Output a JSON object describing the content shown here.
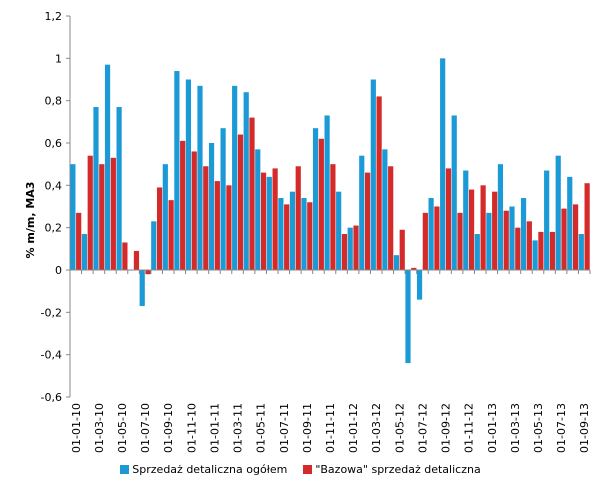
{
  "chart_data": {
    "type": "bar",
    "title": "",
    "xlabel": "",
    "ylabel": "% m/m, MA3",
    "ylim": [
      -0.6,
      1.2
    ],
    "ytick_step": 0.2,
    "ytick_labels": [
      "-0,6",
      "-0,4",
      "-0,2",
      "0",
      "0,2",
      "0,4",
      "0,6",
      "0,8",
      "1",
      "1,2"
    ],
    "grid": false,
    "legend_position": "bottom",
    "categories": [
      "01-01-10",
      "01-02-10",
      "01-03-10",
      "01-04-10",
      "01-05-10",
      "01-06-10",
      "01-07-10",
      "01-08-10",
      "01-09-10",
      "01-10-10",
      "01-11-10",
      "01-12-10",
      "01-01-11",
      "01-02-11",
      "01-03-11",
      "01-04-11",
      "01-05-11",
      "01-06-11",
      "01-07-11",
      "01-08-11",
      "01-09-11",
      "01-10-11",
      "01-11-11",
      "01-12-11",
      "01-01-12",
      "01-02-12",
      "01-03-12",
      "01-04-12",
      "01-05-12",
      "01-06-12",
      "01-07-12",
      "01-08-12",
      "01-09-12",
      "01-10-12",
      "01-11-12",
      "01-12-12",
      "01-01-13",
      "01-02-13",
      "01-03-13",
      "01-04-13",
      "01-05-13",
      "01-06-13",
      "01-07-13",
      "01-08-13",
      "01-09-13"
    ],
    "tick_labels": [
      "01-01-10",
      "01-03-10",
      "01-05-10",
      "01-07-10",
      "01-09-10",
      "01-11-10",
      "01-01-11",
      "01-03-11",
      "01-05-11",
      "01-07-11",
      "01-09-11",
      "01-11-11",
      "01-01-12",
      "01-03-12",
      "01-05-12",
      "01-07-12",
      "01-09-12",
      "01-11-12",
      "01-01-13",
      "01-03-13",
      "01-05-13",
      "01-07-13",
      "01-09-13"
    ],
    "series": [
      {
        "name": "Sprzedaż detaliczna  ogółem",
        "color": "#1c9ad6",
        "values": [
          0.5,
          0.17,
          0.77,
          0.97,
          0.77,
          0.0,
          -0.17,
          0.23,
          0.5,
          0.94,
          0.9,
          0.87,
          0.6,
          0.67,
          0.87,
          0.84,
          0.57,
          0.44,
          0.34,
          0.37,
          0.34,
          0.67,
          0.73,
          0.37,
          0.2,
          0.54,
          0.9,
          0.57,
          0.07,
          -0.44,
          -0.14,
          0.34,
          1.0,
          0.73,
          0.47,
          0.17,
          0.27,
          0.5,
          0.3,
          0.34,
          0.14,
          0.47,
          0.54,
          0.44,
          0.17
        ]
      },
      {
        "name": "\"Bazowa\" sprzedaż detaliczna",
        "color": "#d42a2a",
        "values": [
          0.27,
          0.54,
          0.5,
          0.53,
          0.13,
          0.09,
          -0.02,
          0.39,
          0.33,
          0.61,
          0.56,
          0.49,
          0.42,
          0.4,
          0.64,
          0.72,
          0.46,
          0.48,
          0.31,
          0.49,
          0.32,
          0.62,
          0.5,
          0.17,
          0.21,
          0.46,
          0.82,
          0.49,
          0.19,
          0.01,
          0.27,
          0.3,
          0.48,
          0.27,
          0.38,
          0.4,
          0.37,
          0.28,
          0.2,
          0.23,
          0.18,
          0.18,
          0.29,
          0.31,
          0.41
        ]
      }
    ]
  }
}
